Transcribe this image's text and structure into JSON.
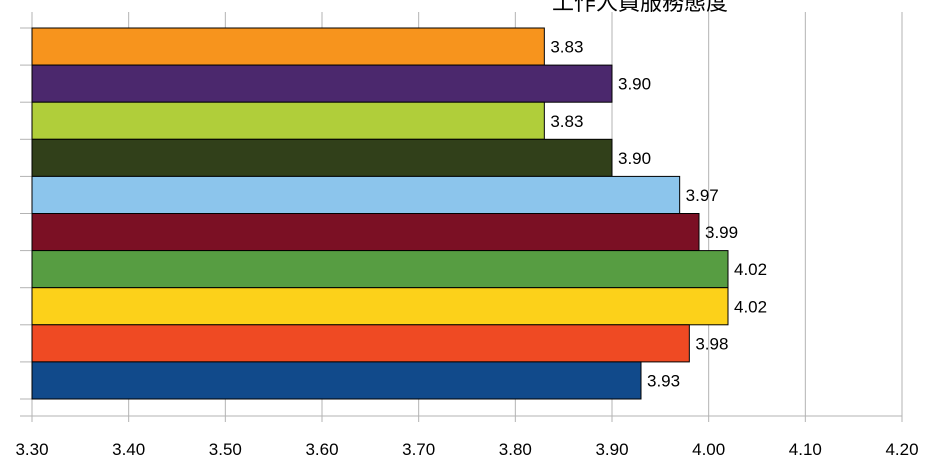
{
  "chart_data": {
    "type": "bar",
    "orientation": "horizontal",
    "title": "工作人員服務態度",
    "xlabel": "",
    "ylabel": "",
    "xlim": [
      3.3,
      4.2
    ],
    "x_ticks": [
      "3.30",
      "3.40",
      "3.50",
      "3.60",
      "3.70",
      "3.80",
      "3.90",
      "4.00",
      "4.10",
      "4.20"
    ],
    "grid": "vertical",
    "values": [
      3.83,
      3.9,
      3.83,
      3.9,
      3.97,
      3.99,
      4.02,
      4.02,
      3.98,
      3.93
    ],
    "value_labels": [
      "3.83",
      "3.90",
      "3.83",
      "3.90",
      "3.97",
      "3.99",
      "4.02",
      "4.02",
      "3.98",
      "3.93"
    ],
    "colors": [
      "#F7941D",
      "#4B286D",
      "#B0CE3A",
      "#31401A",
      "#8CC5EC",
      "#7B1024",
      "#579D42",
      "#FCD11A",
      "#EF4A23",
      "#114A8B"
    ]
  }
}
